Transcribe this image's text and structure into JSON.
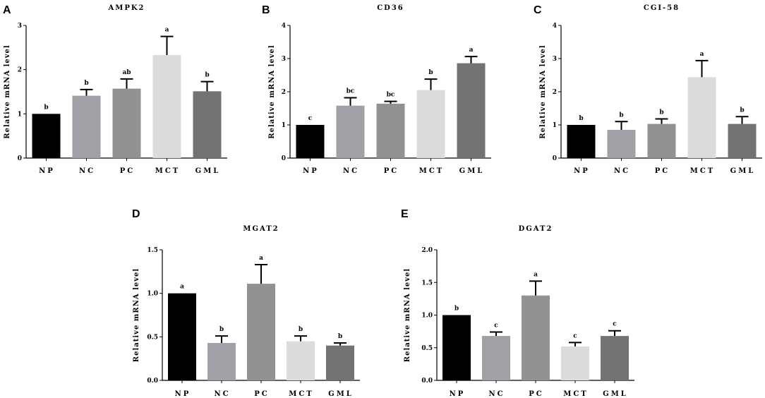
{
  "colors": [
    "#000000",
    "#a0a0a6",
    "#929292",
    "#dcdcdc",
    "#737373"
  ],
  "chart_data": [
    {
      "panel": "A",
      "type": "bar",
      "title": "AMPK2",
      "ylabel": "Relative mRNA  level",
      "categories": [
        "NP",
        "NC",
        "PC",
        "MCT",
        "GML"
      ],
      "values": [
        1.0,
        1.41,
        1.57,
        2.33,
        1.51
      ],
      "errors": [
        0,
        0.14,
        0.22,
        0.42,
        0.22
      ],
      "significance": [
        "b",
        "b",
        "ab",
        "a",
        "b"
      ],
      "ylim": [
        0,
        3
      ],
      "yticks": [
        "0",
        "1",
        "2",
        "3"
      ],
      "ytick_values": [
        0,
        1,
        2,
        3
      ]
    },
    {
      "panel": "B",
      "type": "bar",
      "title": "CD36",
      "ylabel": "Relative mRNA  level",
      "categories": [
        "NP",
        "NC",
        "PC",
        "MCT",
        "GML"
      ],
      "values": [
        1.0,
        1.58,
        1.64,
        2.05,
        2.86
      ],
      "errors": [
        0,
        0.24,
        0.07,
        0.33,
        0.2
      ],
      "significance": [
        "c",
        "bc",
        "bc",
        "b",
        "a"
      ],
      "ylim": [
        0,
        4
      ],
      "yticks": [
        "0",
        "1",
        "2",
        "3",
        "4"
      ],
      "ytick_values": [
        0,
        1,
        2,
        3,
        4
      ]
    },
    {
      "panel": "C",
      "type": "bar",
      "title": "CGI-58",
      "ylabel": "Relative mRNA  level",
      "categories": [
        "NP",
        "NC",
        "PC",
        "MCT",
        "GML"
      ],
      "values": [
        1.0,
        0.85,
        1.03,
        2.44,
        1.03
      ],
      "errors": [
        0,
        0.25,
        0.15,
        0.5,
        0.22
      ],
      "significance": [
        "b",
        "b",
        "b",
        "a",
        "b"
      ],
      "ylim": [
        0,
        4
      ],
      "yticks": [
        "0",
        "1",
        "2",
        "3",
        "4"
      ],
      "ytick_values": [
        0,
        1,
        2,
        3,
        4
      ]
    },
    {
      "panel": "D",
      "type": "bar",
      "title": "MGAT2",
      "ylabel": "Relative mRNA  level",
      "categories": [
        "NP",
        "NC",
        "PC",
        "MCT",
        "GML"
      ],
      "values": [
        1.0,
        0.43,
        1.11,
        0.45,
        0.4
      ],
      "errors": [
        0,
        0.08,
        0.22,
        0.06,
        0.03
      ],
      "significance": [
        "a",
        "b",
        "a",
        "b",
        "b"
      ],
      "ylim": [
        0,
        1.5
      ],
      "yticks": [
        "0.0",
        "0.5",
        "1.0",
        "1.5"
      ],
      "ytick_values": [
        0,
        0.5,
        1.0,
        1.5
      ]
    },
    {
      "panel": "E",
      "type": "bar",
      "title": "DGAT2",
      "ylabel": "Relative mRNA  level",
      "categories": [
        "NP",
        "NC",
        "PC",
        "MCT",
        "GML"
      ],
      "values": [
        1.0,
        0.68,
        1.3,
        0.52,
        0.68
      ],
      "errors": [
        0,
        0.06,
        0.22,
        0.06,
        0.08
      ],
      "significance": [
        "b",
        "c",
        "a",
        "c",
        "c"
      ],
      "ylim": [
        0,
        2.0
      ],
      "yticks": [
        "0.0",
        "0.5",
        "1.0",
        "1.5",
        "2.0"
      ],
      "ytick_values": [
        0,
        0.5,
        1.0,
        1.5,
        2.0
      ]
    }
  ]
}
